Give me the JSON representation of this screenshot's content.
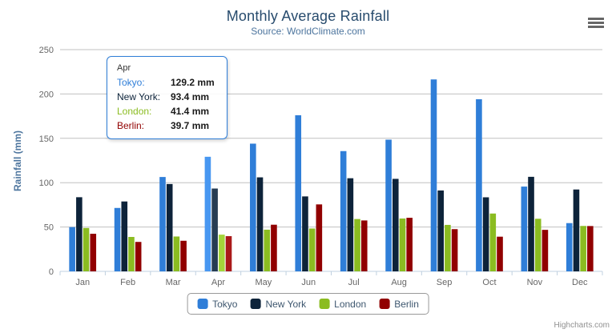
{
  "chart": {
    "title": "Monthly Average Rainfall",
    "subtitle": "Source: WorldClimate.com",
    "credits": "Highcharts.com"
  },
  "chart_data": {
    "type": "bar",
    "title": "Monthly Average Rainfall",
    "subtitle": "Source: WorldClimate.com",
    "xlabel": "",
    "ylabel": "Rainfall (mm)",
    "ylim": [
      0,
      250
    ],
    "yticks": [
      0,
      50,
      100,
      150,
      200,
      250
    ],
    "grid": true,
    "legend_position": "bottom-center",
    "categories": [
      "Jan",
      "Feb",
      "Mar",
      "Apr",
      "May",
      "Jun",
      "Jul",
      "Aug",
      "Sep",
      "Oct",
      "Nov",
      "Dec"
    ],
    "highlighted_category": "Apr",
    "highlighted_index": 3,
    "series": [
      {
        "name": "Tokyo",
        "color": "#2f7ed8",
        "hover_color": "#4897f1",
        "values": [
          49.9,
          71.5,
          106.4,
          129.2,
          144.0,
          176.0,
          135.6,
          148.5,
          216.4,
          194.1,
          95.6,
          54.4
        ]
      },
      {
        "name": "New York",
        "color": "#0d233a",
        "hover_color": "#263c53",
        "values": [
          83.6,
          78.8,
          98.5,
          93.4,
          106.0,
          84.5,
          105.0,
          104.3,
          91.2,
          83.5,
          106.6,
          92.3
        ]
      },
      {
        "name": "London",
        "color": "#8bbc21",
        "hover_color": "#a4d53a",
        "values": [
          48.9,
          38.8,
          39.3,
          41.4,
          47.0,
          48.3,
          59.0,
          59.6,
          52.4,
          65.2,
          59.3,
          51.2
        ]
      },
      {
        "name": "Berlin",
        "color": "#910000",
        "hover_color": "#aa1919",
        "values": [
          42.4,
          33.2,
          34.5,
          39.7,
          52.6,
          75.5,
          57.4,
          60.4,
          47.6,
          39.1,
          46.8,
          51.1
        ]
      }
    ],
    "colors": {
      "gridline": "#c0c0c0",
      "axis_line": "#c0d0e0",
      "tick_label": "#666666"
    }
  },
  "yaxis": {
    "title": "Rainfall (mm)"
  },
  "tooltip": {
    "header": "Apr",
    "border_color": "#2f7ed8",
    "rows": [
      {
        "name": "Tokyo:",
        "value": "129.2 mm",
        "color": "#2f7ed8"
      },
      {
        "name": "New York:",
        "value": "93.4 mm",
        "color": "#0d233a"
      },
      {
        "name": "London:",
        "value": "41.4 mm",
        "color": "#8bbc21"
      },
      {
        "name": "Berlin:",
        "value": "39.7 mm",
        "color": "#910000"
      }
    ]
  },
  "legend": {
    "items": [
      {
        "label": "Tokyo",
        "color": "#2f7ed8"
      },
      {
        "label": "New York",
        "color": "#0d233a"
      },
      {
        "label": "London",
        "color": "#8bbc21"
      },
      {
        "label": "Berlin",
        "color": "#910000"
      }
    ]
  }
}
